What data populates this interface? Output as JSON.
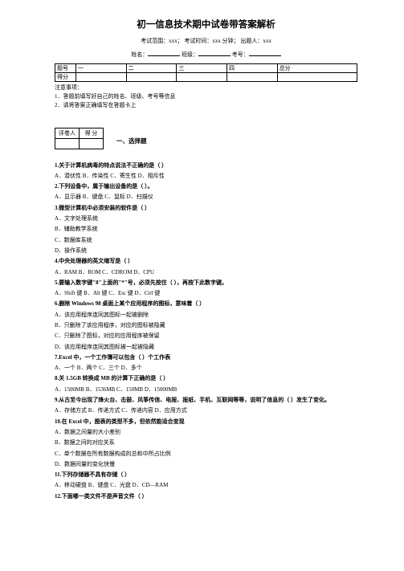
{
  "title": "初一信息技术期中试卷带答案解析",
  "meta": {
    "scope_label": "考试范围：xxx；",
    "time_label": "考试时间：xxx 分钟；",
    "author_label": "出题人：xxx"
  },
  "nameline": {
    "name": "姓名：",
    "class": "班级：",
    "id": "考号："
  },
  "score_table": {
    "row1": [
      "题号",
      "一",
      "二",
      "三",
      "四",
      "总分"
    ],
    "row2": [
      "得分",
      "",
      "",
      "",
      "",
      ""
    ]
  },
  "notice": {
    "head": "注意事项：",
    "l1": "1．答题前填写好自己的姓名、班级、考号等信息",
    "l2": "2．请将答案正确填写在答题卡上"
  },
  "reviewer": {
    "c1": "评卷人",
    "c2": "得 分"
  },
  "section1": "一、选择题",
  "q": [
    "1.关于计算机病毒的特点说法不正确的是（  ）",
    "A．潜伏性    B．传染性    C．寄生性    D．相斥性",
    "2.下列设备中，属于输出设备的是（   ）。",
    "A．显示器    B．键盘    C．鼠标    D．扫描仪",
    "3.微型计算机中必须安装的软件是（    ）",
    "A．文字处理系统",
    "B．辅助教学系统",
    "C．数据库系统",
    "D．操作系统",
    "4.中央处理器的英文缩写是（   ）",
    "A．RAM    B．ROM    C．CDROM    D．CPU",
    "5.要输入数字键\"8\"上面的\"*\"号，必须先按住（   ），再按下此数字键。",
    "A．Shift 键    B．Alt 键    C．Esc 键    D．Ctrl 键",
    "6.删除 Windows 98 桌面上某个应用程序的图标，意味着（  ）",
    "A．该应用程序连同其图标一起被删除",
    "B．只删除了该应用程序，对应的图标被隐藏",
    "C．只删除了图标，对应的应用程序被保留",
    "D．该应用程序连同其图标被一起被隐藏",
    "7.Excel 中，一个工作簿可以包含（ ）个工作表",
    "A．一个    B．两个    C．三个    D．多个",
    "8.关 1.5GB 转换成 MB 的计算下正确的是（   ）",
    "A．1500MB    B．1536MB    C．150MB    D．15000MB",
    "9.从古至今出现了烽火台、击鼓、风筝传信、电报、报纸、手机、互联网等等，说明了信息的（   ）发生了变化。",
    "A．存储方式    B．传递方式    C．传递内容    D．应用方式",
    "10.在 Excel 中，图表的类型不多，但依然能适合变现",
    "A．数据之间量的大小差别",
    "B．数据之间的对应关系",
    "C．单个数据在所有数据构成的总和中所占比例",
    "D．数据间量的变化快慢",
    "11.下列存储器不具有存储（  ）",
    "A．移动硬盘    B．键盘    C．光盘    D．CD—RAM",
    "12.下面哪一类文件不是声音文件（   ）"
  ]
}
